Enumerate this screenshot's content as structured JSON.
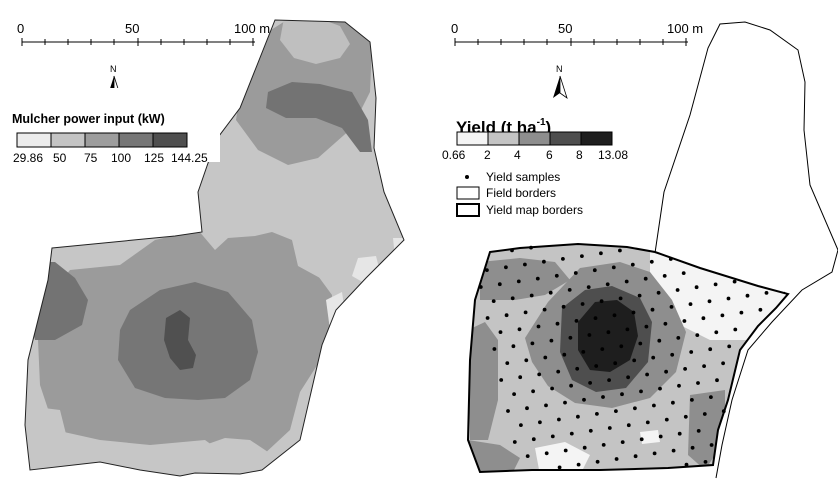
{
  "left_map": {
    "scale": {
      "ticks": [
        "0",
        "50",
        "100 m"
      ]
    },
    "north": "N",
    "legend": {
      "title": "Mulcher power input (kW)",
      "colors": [
        "#ececec",
        "#c4c4c4",
        "#9d9d9d",
        "#767676",
        "#4f4f4f"
      ],
      "breaks": [
        "29.86",
        "50",
        "75",
        "100",
        "125",
        "144.25"
      ]
    }
  },
  "right_map": {
    "scale": {
      "ticks": [
        "0",
        "50",
        "100 m"
      ]
    },
    "north": "N",
    "legend": {
      "title": "Yield (t ha",
      "title_sup": "-1",
      "title_close": ")",
      "colors": [
        "#f4f4f4",
        "#c4c4c4",
        "#8e8e8e",
        "#4e4e4e",
        "#1e1e1e"
      ],
      "breaks": [
        "0.66",
        "2",
        "4",
        "6",
        "8",
        "13.08"
      ],
      "entries": [
        "Yield samples",
        "Field borders",
        "Yield map borders"
      ]
    }
  }
}
